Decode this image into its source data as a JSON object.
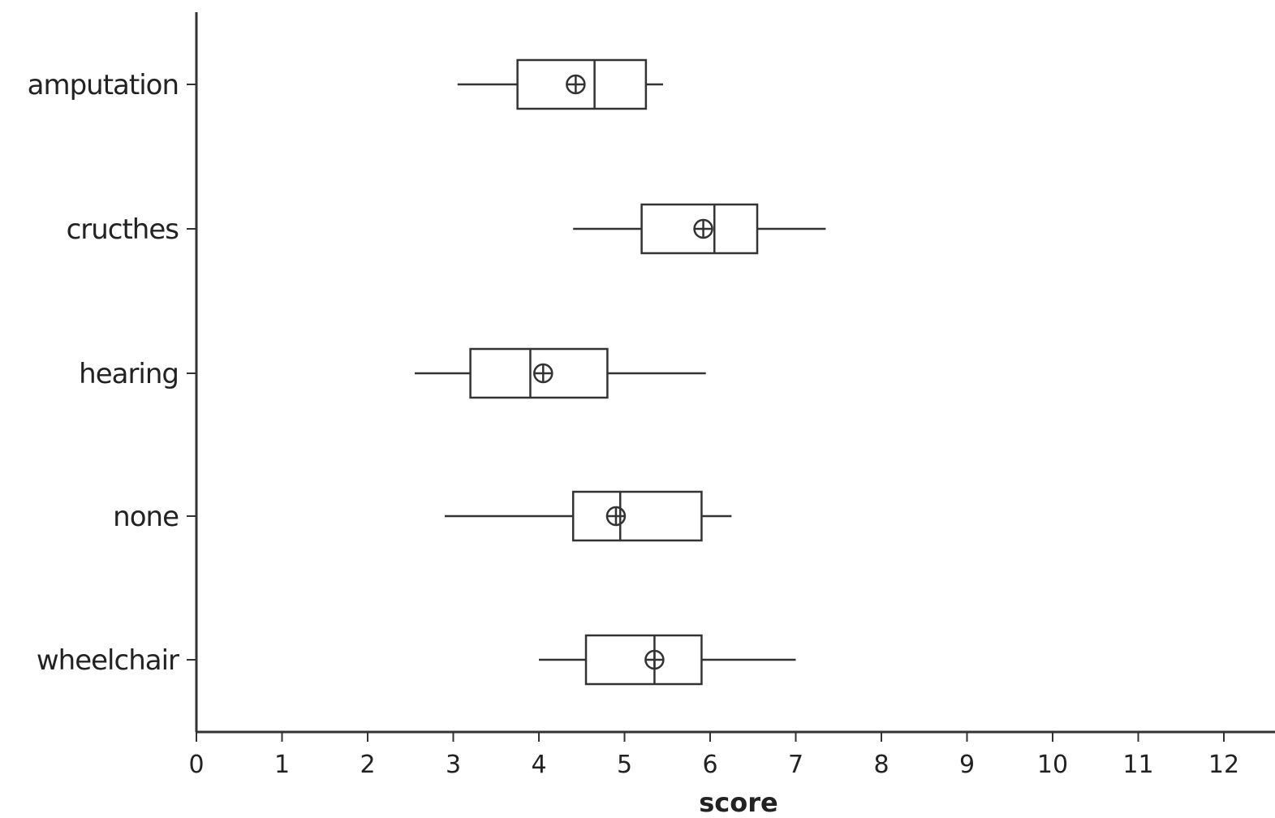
{
  "chart_data": {
    "type": "boxplot",
    "orientation": "horizontal",
    "title": "",
    "xlabel": "score",
    "ylabel": "",
    "xlim": [
      0,
      12.5
    ],
    "xticks": [
      0,
      1,
      2,
      3,
      4,
      5,
      6,
      7,
      8,
      9,
      10,
      11,
      12
    ],
    "xtick_labels": [
      "0",
      "1",
      "2",
      "3",
      "4",
      "5",
      "6",
      "7",
      "8",
      "9",
      "10",
      "11",
      "12"
    ],
    "grid": false,
    "categories": [
      "amputation",
      "cructhes",
      "hearing",
      "none",
      "wheelchair"
    ],
    "boxes": [
      {
        "category": "amputation",
        "min": 3.05,
        "q1": 3.75,
        "median": 4.65,
        "q3": 5.25,
        "max": 5.45,
        "mean": 4.43
      },
      {
        "category": "cructhes",
        "min": 4.4,
        "q1": 5.2,
        "median": 6.05,
        "q3": 6.55,
        "max": 7.35,
        "mean": 5.92
      },
      {
        "category": "hearing",
        "min": 2.55,
        "q1": 3.2,
        "median": 3.9,
        "q3": 4.8,
        "max": 5.95,
        "mean": 4.05
      },
      {
        "category": "none",
        "min": 2.9,
        "q1": 4.4,
        "median": 4.95,
        "q3": 5.9,
        "max": 6.25,
        "mean": 4.9
      },
      {
        "category": "wheelchair",
        "min": 4.0,
        "q1": 4.55,
        "median": 5.35,
        "q3": 5.9,
        "max": 7.0,
        "mean": 5.35
      }
    ],
    "mean_marker": "circle-cross"
  }
}
